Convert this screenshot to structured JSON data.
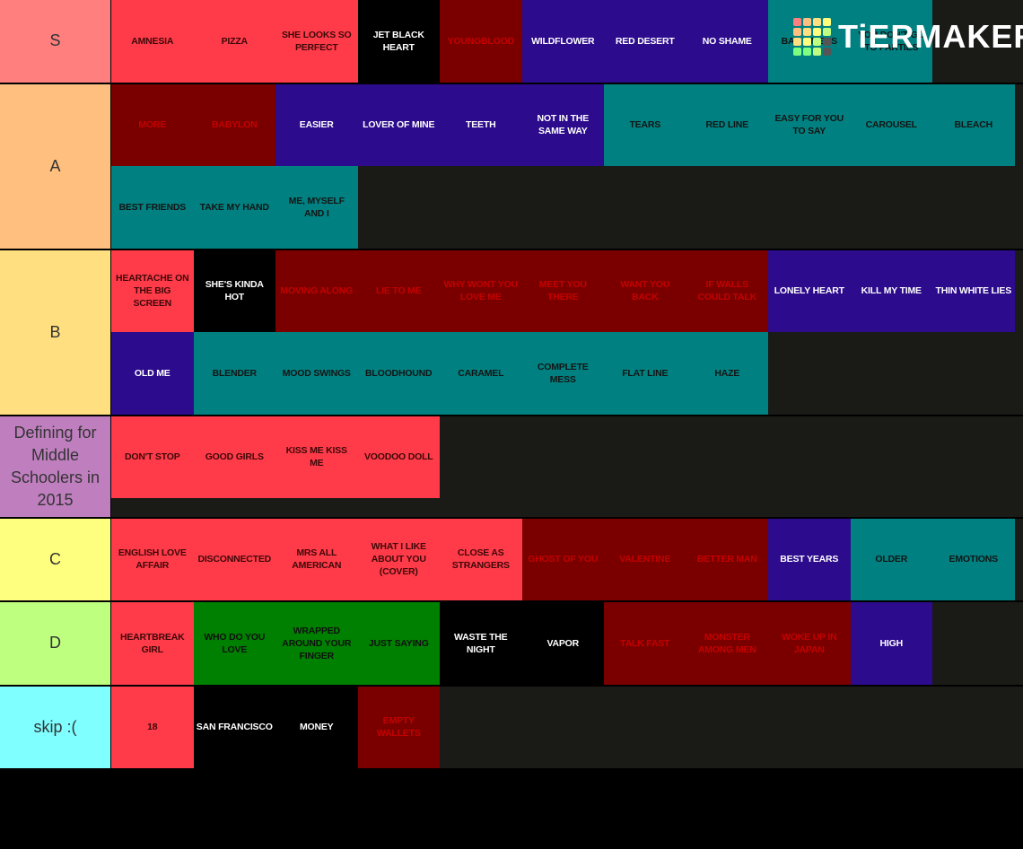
{
  "logo": "TiERMAKER",
  "tiers": [
    {
      "label": "S",
      "color": "#ff7f7f",
      "items": [
        {
          "text": "AMNESIA",
          "color": "#ff3b4a"
        },
        {
          "text": "PIZZA",
          "color": "#ff3b4a"
        },
        {
          "text": "SHE LOOKS SO PERFECT",
          "color": "#ff3b4a"
        },
        {
          "text": "JET BLACK HEART",
          "color": "#000000"
        },
        {
          "text": "YOUNGBLOOD",
          "color": "#7a0000"
        },
        {
          "text": "WILDFLOWER",
          "color": "#2c0b8c"
        },
        {
          "text": "RED DESERT",
          "color": "#2c0b8c"
        },
        {
          "text": "NO SHAME",
          "color": "#2c0b8c"
        },
        {
          "text": "BAD OMENS",
          "color": "#008080"
        },
        {
          "text": "YOU DON'T GO TO PARTIES",
          "color": "#008080"
        }
      ]
    },
    {
      "label": "A",
      "color": "#ffbf7f",
      "items": [
        {
          "text": "MORE",
          "color": "#7a0000"
        },
        {
          "text": "BABYLON",
          "color": "#7a0000"
        },
        {
          "text": "EASIER",
          "color": "#2c0b8c"
        },
        {
          "text": "LOVER OF MINE",
          "color": "#2c0b8c"
        },
        {
          "text": "TEETH",
          "color": "#2c0b8c"
        },
        {
          "text": "NOT IN THE SAME WAY",
          "color": "#2c0b8c"
        },
        {
          "text": "TEARS",
          "color": "#008080"
        },
        {
          "text": "RED LINE",
          "color": "#008080"
        },
        {
          "text": "EASY FOR YOU TO SAY",
          "color": "#008080"
        },
        {
          "text": "CAROUSEL",
          "color": "#008080"
        },
        {
          "text": "BLEACH",
          "color": "#008080"
        },
        {
          "text": "BEST FRIENDS",
          "color": "#008080"
        },
        {
          "text": "TAKE MY HAND",
          "color": "#008080"
        },
        {
          "text": "ME, MYSELF AND I",
          "color": "#008080"
        }
      ]
    },
    {
      "label": "B",
      "color": "#ffdf7f",
      "items": [
        {
          "text": "HEARTACHE ON THE BIG SCREEN",
          "color": "#ff3b4a"
        },
        {
          "text": "SHE'S KINDA HOT",
          "color": "#000000"
        },
        {
          "text": "MOVING ALONG",
          "color": "#7a0000"
        },
        {
          "text": "LIE TO ME",
          "color": "#7a0000"
        },
        {
          "text": "WHY WONT YOU LOVE ME",
          "color": "#7a0000"
        },
        {
          "text": "MEET YOU THERE",
          "color": "#7a0000"
        },
        {
          "text": "WANT YOU BACK",
          "color": "#7a0000"
        },
        {
          "text": "IF WALLS COULD TALK",
          "color": "#7a0000"
        },
        {
          "text": "LONELY HEART",
          "color": "#2c0b8c"
        },
        {
          "text": "KILL MY TIME",
          "color": "#2c0b8c"
        },
        {
          "text": "THIN WHITE LIES",
          "color": "#2c0b8c"
        },
        {
          "text": "OLD ME",
          "color": "#2c0b8c"
        },
        {
          "text": "BLENDER",
          "color": "#008080"
        },
        {
          "text": "MOOD SWINGS",
          "color": "#008080"
        },
        {
          "text": "BLOODHOUND",
          "color": "#008080"
        },
        {
          "text": "CARAMEL",
          "color": "#008080"
        },
        {
          "text": "COMPLETE MESS",
          "color": "#008080"
        },
        {
          "text": "FLAT LINE",
          "color": "#008080"
        },
        {
          "text": "HAZE",
          "color": "#008080"
        }
      ]
    },
    {
      "label": "Defining for Middle Schoolers in 2015",
      "color": "#bf7fbf",
      "items": [
        {
          "text": "DON'T STOP",
          "color": "#ff3b4a"
        },
        {
          "text": "GOOD GIRLS",
          "color": "#ff3b4a"
        },
        {
          "text": "KISS ME KISS ME",
          "color": "#ff3b4a"
        },
        {
          "text": "VOODOO DOLL",
          "color": "#ff3b4a"
        }
      ]
    },
    {
      "label": "C",
      "color": "#ffff7f",
      "items": [
        {
          "text": "ENGLISH LOVE AFFAIR",
          "color": "#ff3b4a"
        },
        {
          "text": "DISCONNECTED",
          "color": "#ff3b4a"
        },
        {
          "text": "MRS ALL AMERICAN",
          "color": "#ff3b4a"
        },
        {
          "text": "WHAT I LIKE ABOUT YOU (COVER)",
          "color": "#ff3b4a"
        },
        {
          "text": "CLOSE AS STRANGERS",
          "color": "#ff3b4a"
        },
        {
          "text": "GHOST OF YOU",
          "color": "#7a0000"
        },
        {
          "text": "VALENTINE",
          "color": "#7a0000"
        },
        {
          "text": "BETTER MAN",
          "color": "#7a0000"
        },
        {
          "text": "BEST YEARS",
          "color": "#2c0b8c"
        },
        {
          "text": "OLDER",
          "color": "#008080"
        },
        {
          "text": "EMOTIONS",
          "color": "#008080"
        }
      ]
    },
    {
      "label": "D",
      "color": "#bfff7f",
      "items": [
        {
          "text": "HEARTBREAK GIRL",
          "color": "#ff3b4a"
        },
        {
          "text": "WHO DO YOU LOVE",
          "color": "#008000"
        },
        {
          "text": "WRAPPED AROUND YOUR FINGER",
          "color": "#008000"
        },
        {
          "text": "JUST SAYING",
          "color": "#008000"
        },
        {
          "text": "WASTE THE NIGHT",
          "color": "#000000"
        },
        {
          "text": "VAPOR",
          "color": "#000000"
        },
        {
          "text": "TALK FAST",
          "color": "#7a0000"
        },
        {
          "text": "MONSTER AMONG MEN",
          "color": "#7a0000"
        },
        {
          "text": "WOKE UP IN JAPAN",
          "color": "#7a0000"
        },
        {
          "text": "HIGH",
          "color": "#2c0b8c"
        }
      ]
    },
    {
      "label": "skip :(",
      "color": "#7fffff",
      "items": [
        {
          "text": "18",
          "color": "#ff3b4a"
        },
        {
          "text": "SAN FRANCISCO",
          "color": "#000000"
        },
        {
          "text": "MONEY",
          "color": "#000000"
        },
        {
          "text": "EMPTY WALLETS",
          "color": "#7a0000"
        }
      ]
    }
  ]
}
